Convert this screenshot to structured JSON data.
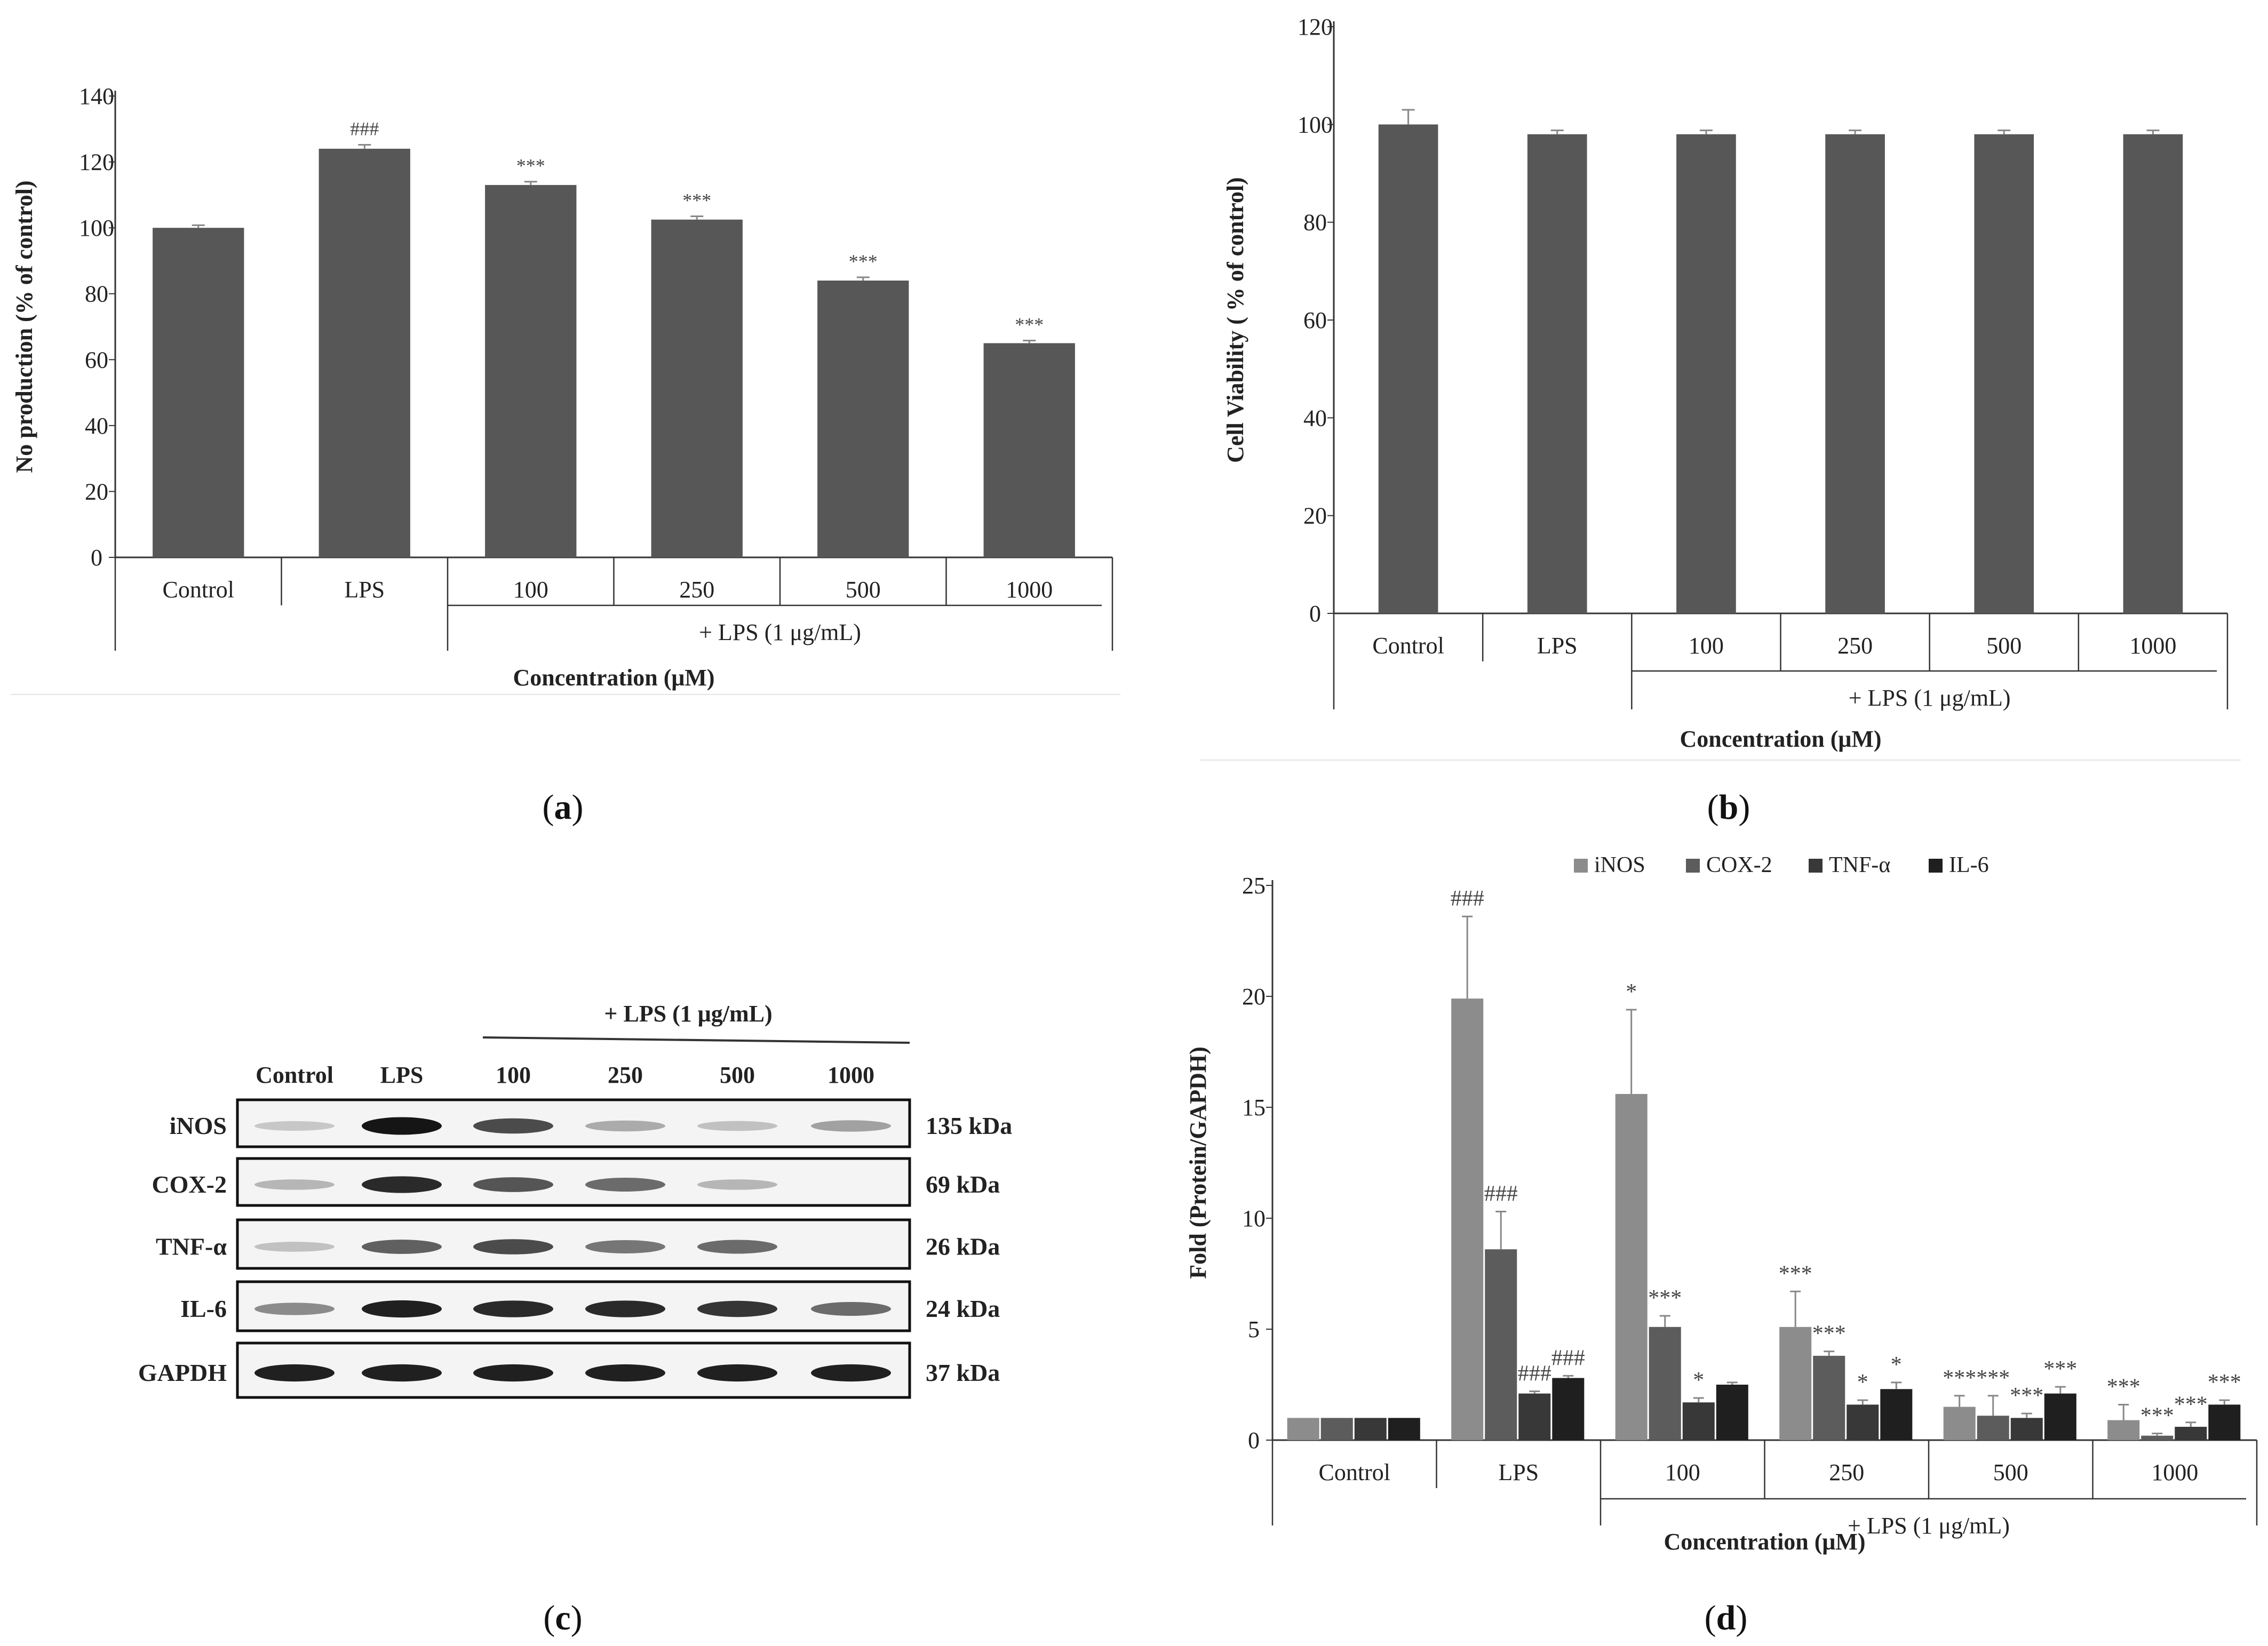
{
  "panels": {
    "a": "a",
    "b": "b",
    "c": "c",
    "d": "d"
  },
  "colors": {
    "bar": "#575757",
    "iNOS": "#8c8c8c",
    "COX-2": "#5c5c5c",
    "TNF-α": "#383838",
    "IL-6": "#1f1f1f",
    "err": "#888888"
  },
  "chart_data": [
    {
      "id": "a",
      "type": "bar",
      "title": "",
      "ylabel": "No production (% of control)",
      "xlabel": "Concentration (μM)",
      "group_label": "+ LPS (1 μg/mL)",
      "ylim": [
        0,
        140
      ],
      "yticks": [
        0,
        20,
        40,
        60,
        80,
        100,
        120,
        140
      ],
      "categories": [
        "Control",
        "LPS",
        "100",
        "250",
        "500",
        "1000"
      ],
      "values": [
        100,
        124,
        113,
        102.5,
        84,
        65
      ],
      "errors": [
        0.8,
        1.2,
        1.0,
        1.0,
        1.0,
        0.8
      ],
      "annotations": [
        "",
        "###",
        "***",
        "***",
        "***",
        "***"
      ]
    },
    {
      "id": "b",
      "type": "bar",
      "title": "",
      "ylabel": "Cell Viability ( % of control)",
      "xlabel": "Concentration (μM)",
      "group_label": "+ LPS (1 μg/mL)",
      "ylim": [
        0,
        120
      ],
      "yticks": [
        0,
        20,
        40,
        60,
        80,
        100,
        120
      ],
      "categories": [
        "Control",
        "LPS",
        "100",
        "250",
        "500",
        "1000"
      ],
      "values": [
        100,
        98,
        98,
        98,
        98,
        98
      ],
      "errors": [
        3,
        0.8,
        0.8,
        0.8,
        0.8,
        0.8
      ],
      "annotations": [
        "",
        "",
        "",
        "",
        "",
        ""
      ]
    },
    {
      "id": "d",
      "type": "bar",
      "title": "",
      "ylabel": "Fold (Protein/GAPDH)",
      "xlabel": "Concentration (μM)",
      "group_label": "+ LPS  (1 μg/mL)",
      "ylim": [
        0,
        25
      ],
      "yticks": [
        0,
        5,
        10,
        15,
        20,
        25
      ],
      "categories": [
        "Control",
        "LPS",
        "100",
        "250",
        "500",
        "1000"
      ],
      "series": [
        {
          "name": "iNOS",
          "values": [
            1.0,
            19.9,
            15.6,
            5.1,
            1.5,
            0.9
          ],
          "errors": [
            0,
            3.7,
            3.8,
            1.6,
            0.5,
            0.7
          ],
          "annotations": [
            "",
            "###",
            "*",
            "***",
            "***",
            "***"
          ]
        },
        {
          "name": "COX-2",
          "values": [
            1.0,
            8.6,
            5.1,
            3.8,
            1.1,
            0.2
          ],
          "errors": [
            0,
            1.7,
            0.5,
            0.2,
            0.9,
            0.1
          ],
          "annotations": [
            "",
            "###",
            "***",
            "***",
            "***",
            "***"
          ]
        },
        {
          "name": "TNF-α",
          "values": [
            1.0,
            2.1,
            1.7,
            1.6,
            1.0,
            0.6
          ],
          "errors": [
            0,
            0.1,
            0.2,
            0.2,
            0.2,
            0.2
          ],
          "annotations": [
            "",
            "###",
            "*",
            "*",
            "***",
            "***"
          ]
        },
        {
          "name": "IL-6",
          "values": [
            1.0,
            2.8,
            2.5,
            2.3,
            2.1,
            1.6
          ],
          "errors": [
            0,
            0.1,
            0.1,
            0.3,
            0.3,
            0.2
          ],
          "annotations": [
            "",
            "###",
            "",
            "*",
            "***",
            "***"
          ]
        }
      ]
    }
  ],
  "blot": {
    "header": "+ LPS (1 μg/mL)",
    "lanes": [
      "Control",
      "LPS",
      "100",
      "250",
      "500",
      "1000"
    ],
    "rows": [
      {
        "protein": "iNOS",
        "size": "135 kDa",
        "intensity": [
          0.12,
          0.95,
          0.7,
          0.25,
          0.15,
          0.3
        ]
      },
      {
        "protein": "COX-2",
        "size": "69 kDa",
        "intensity": [
          0.2,
          0.85,
          0.65,
          0.55,
          0.2,
          0.0
        ]
      },
      {
        "protein": "TNF-α",
        "size": "26 kDa",
        "intensity": [
          0.15,
          0.6,
          0.7,
          0.5,
          0.55,
          0.0
        ]
      },
      {
        "protein": "IL-6",
        "size": "24 kDa",
        "intensity": [
          0.4,
          0.9,
          0.85,
          0.85,
          0.8,
          0.55
        ]
      },
      {
        "protein": "GAPDH",
        "size": "37 kDa",
        "intensity": [
          0.9,
          0.9,
          0.9,
          0.9,
          0.9,
          0.9
        ]
      }
    ]
  }
}
